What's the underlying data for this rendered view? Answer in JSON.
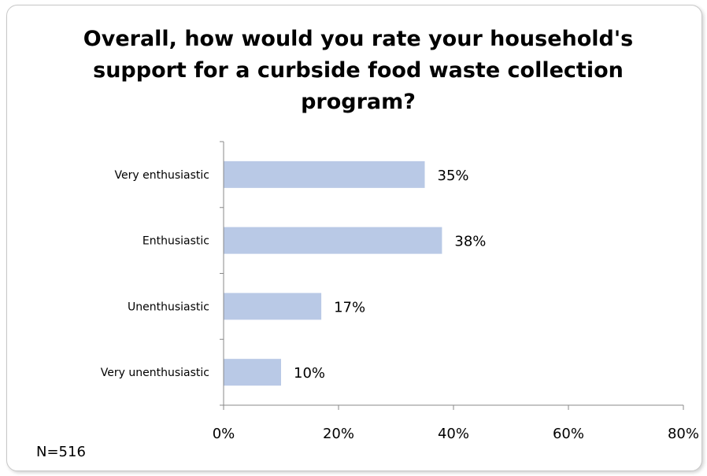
{
  "chart_data": {
    "type": "bar",
    "orientation": "horizontal",
    "title": "Overall, how would you rate your household's support for a curbside food waste collection program?",
    "categories": [
      "Very enthusiastic",
      "Enthusiastic",
      "Unenthusiastic",
      "Very unenthusiastic"
    ],
    "values": [
      35,
      38,
      17,
      10
    ],
    "data_labels": [
      "35%",
      "38%",
      "17%",
      "10%"
    ],
    "xlim": [
      0,
      80
    ],
    "x_ticks": [
      0,
      20,
      40,
      60,
      80
    ],
    "x_tick_labels": [
      "0%",
      "20%",
      "40%",
      "60%",
      "80%"
    ],
    "grid": false,
    "legend": "none",
    "bar_color": "#b9c9e6",
    "note": "N=516"
  }
}
